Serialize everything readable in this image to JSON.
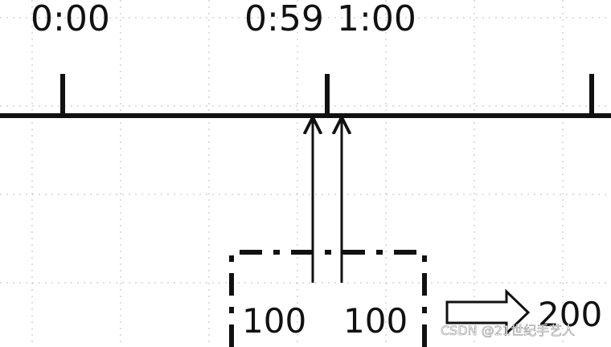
{
  "timeline": {
    "labels": [
      "0:00",
      "0:59",
      "1:00"
    ]
  },
  "window": {
    "values": [
      "100",
      "100"
    ]
  },
  "result": {
    "value": "200"
  },
  "watermark": {
    "text": "CSDN @21世纪手艺人"
  },
  "colors": {
    "line": "#111111",
    "grid": "#bdbdbd",
    "background": "#ffffff"
  }
}
